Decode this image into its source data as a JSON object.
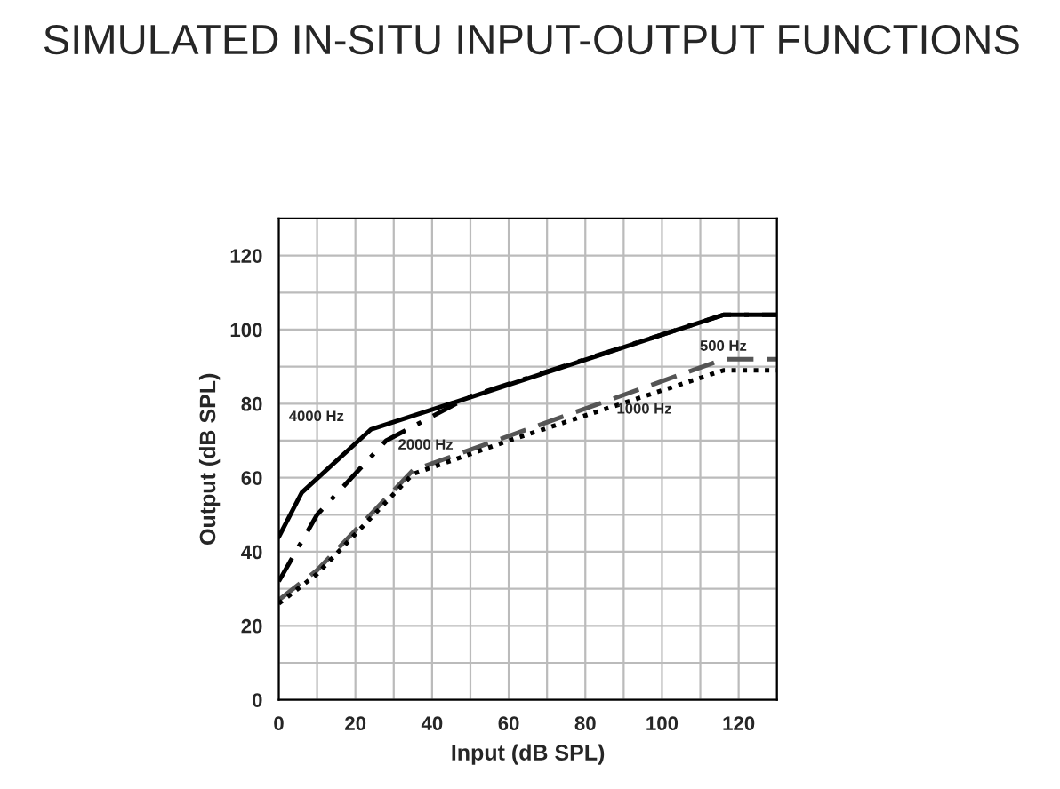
{
  "chart_data": {
    "type": "line",
    "title": "SIMULATED IN-SITU INPUT-OUTPUT FUNCTIONS",
    "xlabel": "Input (dB SPL)",
    "ylabel": "Output (dB SPL)",
    "series": [
      {
        "name": "4000 Hz",
        "color": "#000000",
        "line_style": "solid",
        "x": [
          0,
          6,
          24,
          116,
          130
        ],
        "values": [
          44,
          56,
          73,
          104,
          104
        ]
      },
      {
        "name": "2000 Hz",
        "color": "#000000",
        "line_style": "dashdot",
        "x": [
          0,
          10,
          28,
          50,
          65,
          116,
          130
        ],
        "values": [
          32,
          50,
          70,
          82,
          87,
          104,
          104
        ]
      },
      {
        "name": "500 Hz",
        "color": "#555555",
        "line_style": "dashed",
        "x": [
          0,
          10,
          35,
          116,
          130
        ],
        "values": [
          27,
          35,
          62,
          92,
          92
        ]
      },
      {
        "name": "1000 Hz",
        "color": "#000000",
        "line_style": "dotted",
        "x": [
          0,
          10,
          35,
          60,
          116,
          130
        ],
        "values": [
          26,
          34,
          61,
          70,
          89,
          89
        ]
      }
    ],
    "xlim": [
      0,
      130
    ],
    "ylim": [
      0,
      130
    ],
    "xticks": [
      0,
      {
        "value": 10,
        "label": null
      },
      20,
      {
        "value": 30,
        "label": null
      },
      40,
      {
        "value": 50,
        "label": null
      },
      60,
      {
        "value": 70,
        "label": null
      },
      80,
      {
        "value": 90,
        "label": null
      },
      100,
      {
        "value": 110,
        "label": null
      },
      120,
      {
        "value": 130,
        "label": null
      }
    ],
    "yticks": [
      0,
      {
        "value": 10,
        "label": null
      },
      20,
      {
        "value": 30,
        "label": null
      },
      40,
      {
        "value": 50,
        "label": null
      },
      60,
      {
        "value": 70,
        "label": null
      },
      80,
      {
        "value": 90,
        "label": null
      },
      100,
      {
        "value": 110,
        "label": null
      },
      120,
      {
        "value": 130,
        "label": null
      }
    ],
    "grid": true,
    "legend": false
  }
}
